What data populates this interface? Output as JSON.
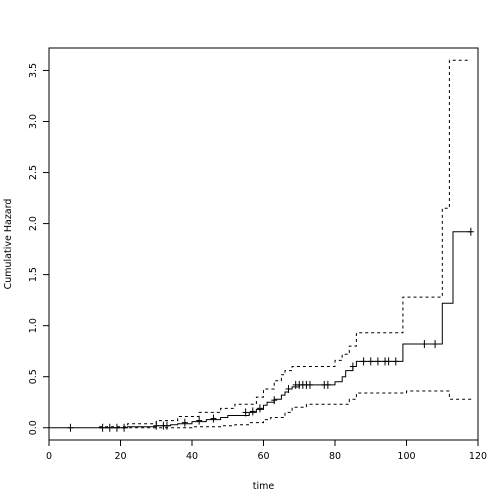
{
  "chart_data": {
    "type": "line",
    "title": "",
    "xlabel": "time",
    "ylabel": "Cumulative Hazard",
    "xlim": [
      0,
      120
    ],
    "ylim": [
      -0.12,
      3.72
    ],
    "x_ticks": [
      0,
      20,
      40,
      60,
      80,
      100,
      120
    ],
    "y_ticks": [
      0.0,
      0.5,
      1.0,
      1.5,
      2.0,
      2.5,
      3.0,
      3.5
    ],
    "x_tick_labels": [
      "0",
      "20",
      "40",
      "60",
      "80",
      "100",
      "120"
    ],
    "y_tick_labels": [
      "0.0",
      "0.5",
      "1.0",
      "1.5",
      "2.0",
      "2.5",
      "3.0",
      "3.5"
    ],
    "grid": false,
    "series": [
      {
        "style": "solid",
        "x": [
          0,
          22,
          30,
          34,
          36,
          40,
          44,
          48,
          50,
          56,
          58,
          60,
          61,
          63,
          65,
          66,
          67,
          68,
          70,
          80,
          82,
          83,
          85,
          86,
          98,
          99,
          109,
          110,
          111,
          113,
          118
        ],
        "y": [
          0.0,
          0.01,
          0.02,
          0.03,
          0.04,
          0.06,
          0.08,
          0.1,
          0.12,
          0.15,
          0.18,
          0.22,
          0.25,
          0.28,
          0.32,
          0.35,
          0.38,
          0.4,
          0.42,
          0.45,
          0.5,
          0.56,
          0.6,
          0.65,
          0.65,
          0.82,
          0.82,
          1.22,
          1.22,
          1.92,
          1.92
        ]
      },
      {
        "style": "dashed",
        "x": [
          14,
          22,
          30,
          36,
          42,
          48,
          52,
          58,
          60,
          63,
          65,
          66,
          68,
          80,
          82,
          84,
          86,
          98,
          99,
          109,
          110,
          112,
          118
        ],
        "y": [
          0.01,
          0.04,
          0.07,
          0.11,
          0.15,
          0.19,
          0.23,
          0.3,
          0.38,
          0.46,
          0.52,
          0.56,
          0.6,
          0.66,
          0.72,
          0.8,
          0.93,
          0.93,
          1.28,
          1.28,
          2.15,
          3.6,
          3.6
        ]
      },
      {
        "style": "dashed",
        "x": [
          14,
          30,
          40,
          48,
          52,
          56,
          60,
          62,
          66,
          68,
          72,
          80,
          84,
          86,
          98,
          100,
          110,
          112,
          118
        ],
        "y": [
          0.0,
          0.0,
          0.01,
          0.02,
          0.03,
          0.05,
          0.08,
          0.1,
          0.15,
          0.2,
          0.23,
          0.23,
          0.28,
          0.34,
          0.34,
          0.36,
          0.36,
          0.28,
          0.26
        ]
      }
    ],
    "censor_marks": [
      {
        "x": 6,
        "y": 0.0
      },
      {
        "x": 15,
        "y": 0.0
      },
      {
        "x": 17,
        "y": 0.0
      },
      {
        "x": 19,
        "y": 0.0
      },
      {
        "x": 21,
        "y": 0.0
      },
      {
        "x": 30,
        "y": 0.02
      },
      {
        "x": 32,
        "y": 0.02
      },
      {
        "x": 33,
        "y": 0.02
      },
      {
        "x": 38,
        "y": 0.05
      },
      {
        "x": 42,
        "y": 0.07
      },
      {
        "x": 46,
        "y": 0.09
      },
      {
        "x": 55,
        "y": 0.15
      },
      {
        "x": 57,
        "y": 0.16
      },
      {
        "x": 59,
        "y": 0.19
      },
      {
        "x": 63,
        "y": 0.27
      },
      {
        "x": 67,
        "y": 0.38
      },
      {
        "x": 69,
        "y": 0.42
      },
      {
        "x": 70,
        "y": 0.42
      },
      {
        "x": 71,
        "y": 0.42
      },
      {
        "x": 72,
        "y": 0.42
      },
      {
        "x": 73,
        "y": 0.42
      },
      {
        "x": 77,
        "y": 0.42
      },
      {
        "x": 78,
        "y": 0.42
      },
      {
        "x": 85,
        "y": 0.6
      },
      {
        "x": 88,
        "y": 0.65
      },
      {
        "x": 90,
        "y": 0.65
      },
      {
        "x": 92,
        "y": 0.65
      },
      {
        "x": 94,
        "y": 0.65
      },
      {
        "x": 95,
        "y": 0.65
      },
      {
        "x": 97,
        "y": 0.65
      },
      {
        "x": 105,
        "y": 0.82
      },
      {
        "x": 108,
        "y": 0.82
      },
      {
        "x": 118,
        "y": 1.92
      }
    ]
  }
}
